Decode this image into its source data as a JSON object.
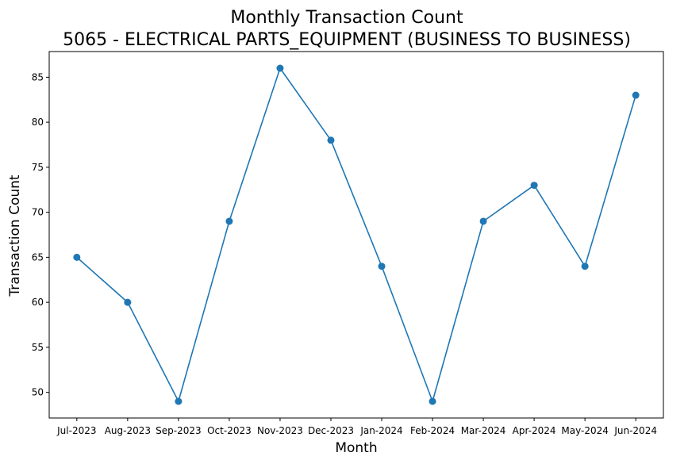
{
  "chart_data": {
    "type": "line",
    "title": "Monthly Transaction Count",
    "subtitle": "5065 - ELECTRICAL PARTS_EQUIPMENT (BUSINESS TO BUSINESS)",
    "xlabel": "Month",
    "ylabel": "Transaction Count",
    "categories": [
      "Jul-2023",
      "Aug-2023",
      "Sep-2023",
      "Oct-2023",
      "Nov-2023",
      "Dec-2023",
      "Jan-2024",
      "Feb-2024",
      "Mar-2024",
      "Apr-2024",
      "May-2024",
      "Jun-2024"
    ],
    "series": [
      {
        "values": [
          65,
          60,
          49,
          69,
          86,
          78,
          64,
          49,
          69,
          73,
          64,
          83
        ],
        "color": "#1f77b4",
        "marker": "circle"
      }
    ],
    "ylim": [
      47.15,
      87.85
    ],
    "yticks": [
      50,
      55,
      60,
      65,
      70,
      75,
      80,
      85
    ],
    "grid": false,
    "legend": "none"
  }
}
